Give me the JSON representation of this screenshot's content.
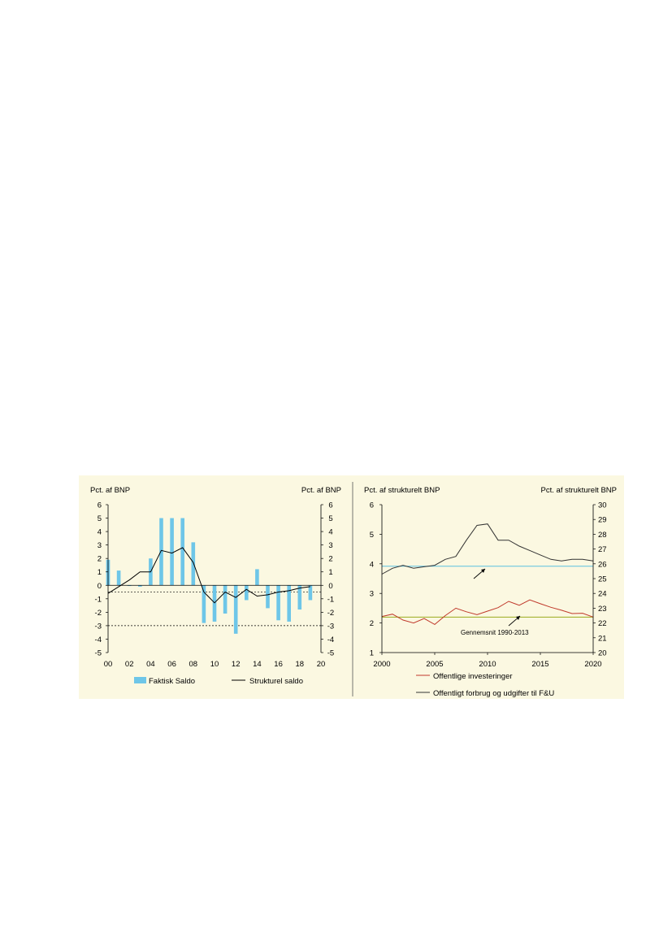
{
  "chart_data": [
    {
      "type": "bar",
      "left_axis_title": "Pct. af BNP",
      "right_axis_title": "Pct. af BNP",
      "categories": [
        "00",
        "01",
        "02",
        "03",
        "04",
        "05",
        "06",
        "07",
        "08",
        "09",
        "10",
        "11",
        "12",
        "13",
        "14",
        "15",
        "16",
        "17",
        "18",
        "19",
        "20"
      ],
      "x_tick_labels": [
        "00",
        "02",
        "04",
        "06",
        "08",
        "10",
        "12",
        "14",
        "16",
        "18",
        "20"
      ],
      "ylim": [
        -5,
        6
      ],
      "y_ticks": [
        6,
        5,
        4,
        3,
        2,
        1,
        0,
        -1,
        -2,
        -3,
        -4,
        -5
      ],
      "series": [
        {
          "name": "Faktisk Saldo",
          "type": "bar",
          "color": "#6ec6e8",
          "values": [
            1.9,
            1.1,
            0.0,
            -0.1,
            2.0,
            5.0,
            5.0,
            5.0,
            3.2,
            -2.8,
            -2.7,
            -2.1,
            -3.6,
            -1.1,
            1.2,
            -1.7,
            -2.6,
            -2.7,
            -1.8,
            -1.1,
            null
          ]
        },
        {
          "name": "Strukturel saldo",
          "type": "line",
          "color": "#000000",
          "values": [
            -0.6,
            -0.1,
            0.4,
            1.0,
            1.0,
            2.6,
            2.4,
            2.8,
            1.7,
            -0.5,
            -1.3,
            -0.5,
            -0.9,
            -0.3,
            -0.8,
            -0.7,
            -0.5,
            -0.4,
            -0.2,
            -0.1,
            null
          ]
        }
      ],
      "reference_lines": [
        {
          "y": -0.5,
          "style": "dashed",
          "color": "#000000"
        },
        {
          "y": -3.0,
          "style": "dashed",
          "color": "#000000"
        }
      ],
      "legend": [
        "Faktisk Saldo",
        "Strukturel saldo"
      ],
      "legend_position": "bottom"
    },
    {
      "type": "line",
      "left_axis_title": "Pct. af strukturelt BNP",
      "right_axis_title": "Pct. af strukturelt BNP",
      "x_range": [
        2000,
        2020
      ],
      "x_ticks": [
        2000,
        2005,
        2010,
        2015,
        2020
      ],
      "ylim_left": [
        1,
        6
      ],
      "y_ticks_left": [
        6,
        5,
        4,
        3,
        2,
        1
      ],
      "ylim_right": [
        20,
        30
      ],
      "y_ticks_right": [
        30,
        29,
        28,
        27,
        26,
        25,
        24,
        23,
        22,
        21,
        20
      ],
      "series": [
        {
          "name": "Offentlige investeringer",
          "axis": "left",
          "color": "#c0392b",
          "x": [
            2000,
            2001,
            2002,
            2003,
            2004,
            2005,
            2006,
            2007,
            2008,
            2009,
            2010,
            2011,
            2012,
            2013,
            2014,
            2015,
            2016,
            2017,
            2018,
            2019,
            2020
          ],
          "values": [
            2.22,
            2.3,
            2.1,
            2.0,
            2.15,
            1.95,
            2.25,
            2.5,
            2.38,
            2.28,
            2.4,
            2.52,
            2.73,
            2.6,
            2.78,
            2.65,
            2.53,
            2.43,
            2.32,
            2.33,
            2.2
          ]
        },
        {
          "name": "Offentligt forbrug og udgifter til F&U",
          "axis": "right",
          "color": "#333333",
          "x": [
            2000,
            2001,
            2002,
            2003,
            2004,
            2005,
            2006,
            2007,
            2008,
            2009,
            2010,
            2011,
            2012,
            2013,
            2014,
            2015,
            2016,
            2017,
            2018,
            2019,
            2020
          ],
          "values": [
            25.3,
            25.7,
            25.9,
            25.7,
            25.8,
            25.9,
            26.3,
            26.5,
            27.6,
            28.6,
            28.7,
            27.6,
            27.6,
            27.2,
            26.9,
            26.6,
            26.3,
            26.2,
            26.3,
            26.3,
            26.2
          ]
        }
      ],
      "reference_lines": [
        {
          "axis": "left",
          "y": 3.92,
          "color": "#5bc0e0"
        },
        {
          "axis": "left",
          "y": 2.2,
          "color": "#9aaa1e"
        }
      ],
      "annotation": "Gennemsnit 1990-2013",
      "legend": [
        "Offentlige investeringer",
        "Offentligt forbrug og udgifter til F&U"
      ],
      "legend_position": "bottom"
    }
  ]
}
